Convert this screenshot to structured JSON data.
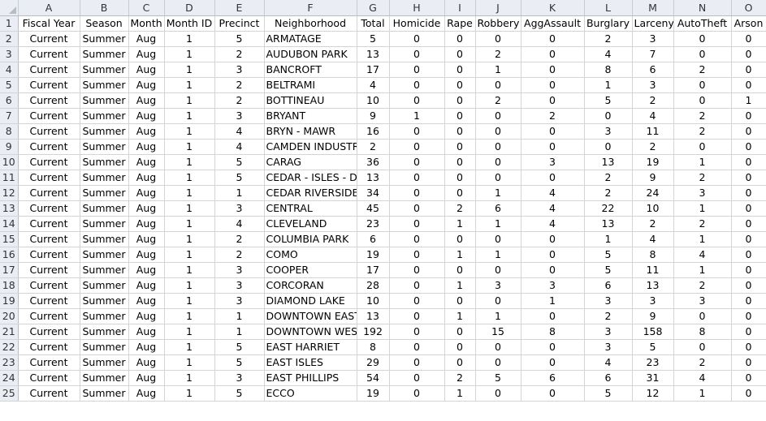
{
  "columns": [
    "A",
    "B",
    "C",
    "D",
    "E",
    "F",
    "G",
    "H",
    "I",
    "J",
    "K",
    "L",
    "M",
    "N",
    "O"
  ],
  "headers": [
    "Fiscal Year",
    "Season",
    "Month",
    "Month ID",
    "Precinct",
    "Neighborhood",
    "Total",
    "Homicide",
    "Rape",
    "Robbery",
    "AggAssault",
    "Burglary",
    "Larceny",
    "AutoTheft",
    "Arson"
  ],
  "row_numbers": [
    "1",
    "2",
    "3",
    "4",
    "5",
    "6",
    "7",
    "8",
    "9",
    "10",
    "11",
    "12",
    "13",
    "14",
    "15",
    "16",
    "17",
    "18",
    "19",
    "20",
    "21",
    "22",
    "23",
    "24",
    "25"
  ],
  "rows": [
    [
      "Current",
      "Summer",
      "Aug",
      "1",
      "5",
      "ARMATAGE",
      "5",
      "0",
      "0",
      "0",
      "0",
      "2",
      "3",
      "0",
      "0"
    ],
    [
      "Current",
      "Summer",
      "Aug",
      "1",
      "2",
      "AUDUBON PARK",
      "13",
      "0",
      "0",
      "2",
      "0",
      "4",
      "7",
      "0",
      "0"
    ],
    [
      "Current",
      "Summer",
      "Aug",
      "1",
      "3",
      "BANCROFT",
      "17",
      "0",
      "0",
      "1",
      "0",
      "8",
      "6",
      "2",
      "0"
    ],
    [
      "Current",
      "Summer",
      "Aug",
      "1",
      "2",
      "BELTRAMI",
      "4",
      "0",
      "0",
      "0",
      "0",
      "1",
      "3",
      "0",
      "0"
    ],
    [
      "Current",
      "Summer",
      "Aug",
      "1",
      "2",
      "BOTTINEAU",
      "10",
      "0",
      "0",
      "2",
      "0",
      "5",
      "2",
      "0",
      "1"
    ],
    [
      "Current",
      "Summer",
      "Aug",
      "1",
      "3",
      "BRYANT",
      "9",
      "1",
      "0",
      "0",
      "2",
      "0",
      "4",
      "2",
      "0"
    ],
    [
      "Current",
      "Summer",
      "Aug",
      "1",
      "4",
      "BRYN - MAWR",
      "16",
      "0",
      "0",
      "0",
      "0",
      "3",
      "11",
      "2",
      "0"
    ],
    [
      "Current",
      "Summer",
      "Aug",
      "1",
      "4",
      "CAMDEN INDUSTR",
      "2",
      "0",
      "0",
      "0",
      "0",
      "0",
      "2",
      "0",
      "0"
    ],
    [
      "Current",
      "Summer",
      "Aug",
      "1",
      "5",
      "CARAG",
      "36",
      "0",
      "0",
      "0",
      "3",
      "13",
      "19",
      "1",
      "0"
    ],
    [
      "Current",
      "Summer",
      "Aug",
      "1",
      "5",
      "CEDAR - ISLES - DE",
      "13",
      "0",
      "0",
      "0",
      "0",
      "2",
      "9",
      "2",
      "0"
    ],
    [
      "Current",
      "Summer",
      "Aug",
      "1",
      "1",
      "CEDAR RIVERSIDE",
      "34",
      "0",
      "0",
      "1",
      "4",
      "2",
      "24",
      "3",
      "0"
    ],
    [
      "Current",
      "Summer",
      "Aug",
      "1",
      "3",
      "CENTRAL",
      "45",
      "0",
      "2",
      "6",
      "4",
      "22",
      "10",
      "1",
      "0"
    ],
    [
      "Current",
      "Summer",
      "Aug",
      "1",
      "4",
      "CLEVELAND",
      "23",
      "0",
      "1",
      "1",
      "4",
      "13",
      "2",
      "2",
      "0"
    ],
    [
      "Current",
      "Summer",
      "Aug",
      "1",
      "2",
      "COLUMBIA PARK",
      "6",
      "0",
      "0",
      "0",
      "0",
      "1",
      "4",
      "1",
      "0"
    ],
    [
      "Current",
      "Summer",
      "Aug",
      "1",
      "2",
      "COMO",
      "19",
      "0",
      "1",
      "1",
      "0",
      "5",
      "8",
      "4",
      "0"
    ],
    [
      "Current",
      "Summer",
      "Aug",
      "1",
      "3",
      "COOPER",
      "17",
      "0",
      "0",
      "0",
      "0",
      "5",
      "11",
      "1",
      "0"
    ],
    [
      "Current",
      "Summer",
      "Aug",
      "1",
      "3",
      "CORCORAN",
      "28",
      "0",
      "1",
      "3",
      "3",
      "6",
      "13",
      "2",
      "0"
    ],
    [
      "Current",
      "Summer",
      "Aug",
      "1",
      "3",
      "DIAMOND LAKE",
      "10",
      "0",
      "0",
      "0",
      "1",
      "3",
      "3",
      "3",
      "0"
    ],
    [
      "Current",
      "Summer",
      "Aug",
      "1",
      "1",
      "DOWNTOWN EAST",
      "13",
      "0",
      "1",
      "1",
      "0",
      "2",
      "9",
      "0",
      "0"
    ],
    [
      "Current",
      "Summer",
      "Aug",
      "1",
      "1",
      "DOWNTOWN WES",
      "192",
      "0",
      "0",
      "15",
      "8",
      "3",
      "158",
      "8",
      "0"
    ],
    [
      "Current",
      "Summer",
      "Aug",
      "1",
      "5",
      "EAST HARRIET",
      "8",
      "0",
      "0",
      "0",
      "0",
      "3",
      "5",
      "0",
      "0"
    ],
    [
      "Current",
      "Summer",
      "Aug",
      "1",
      "5",
      "EAST ISLES",
      "29",
      "0",
      "0",
      "0",
      "0",
      "4",
      "23",
      "2",
      "0"
    ],
    [
      "Current",
      "Summer",
      "Aug",
      "1",
      "3",
      "EAST PHILLIPS",
      "54",
      "0",
      "2",
      "5",
      "6",
      "6",
      "31",
      "4",
      "0"
    ],
    [
      "Current",
      "Summer",
      "Aug",
      "1",
      "5",
      "ECCO",
      "19",
      "0",
      "1",
      "0",
      "0",
      "5",
      "12",
      "1",
      "0"
    ]
  ]
}
